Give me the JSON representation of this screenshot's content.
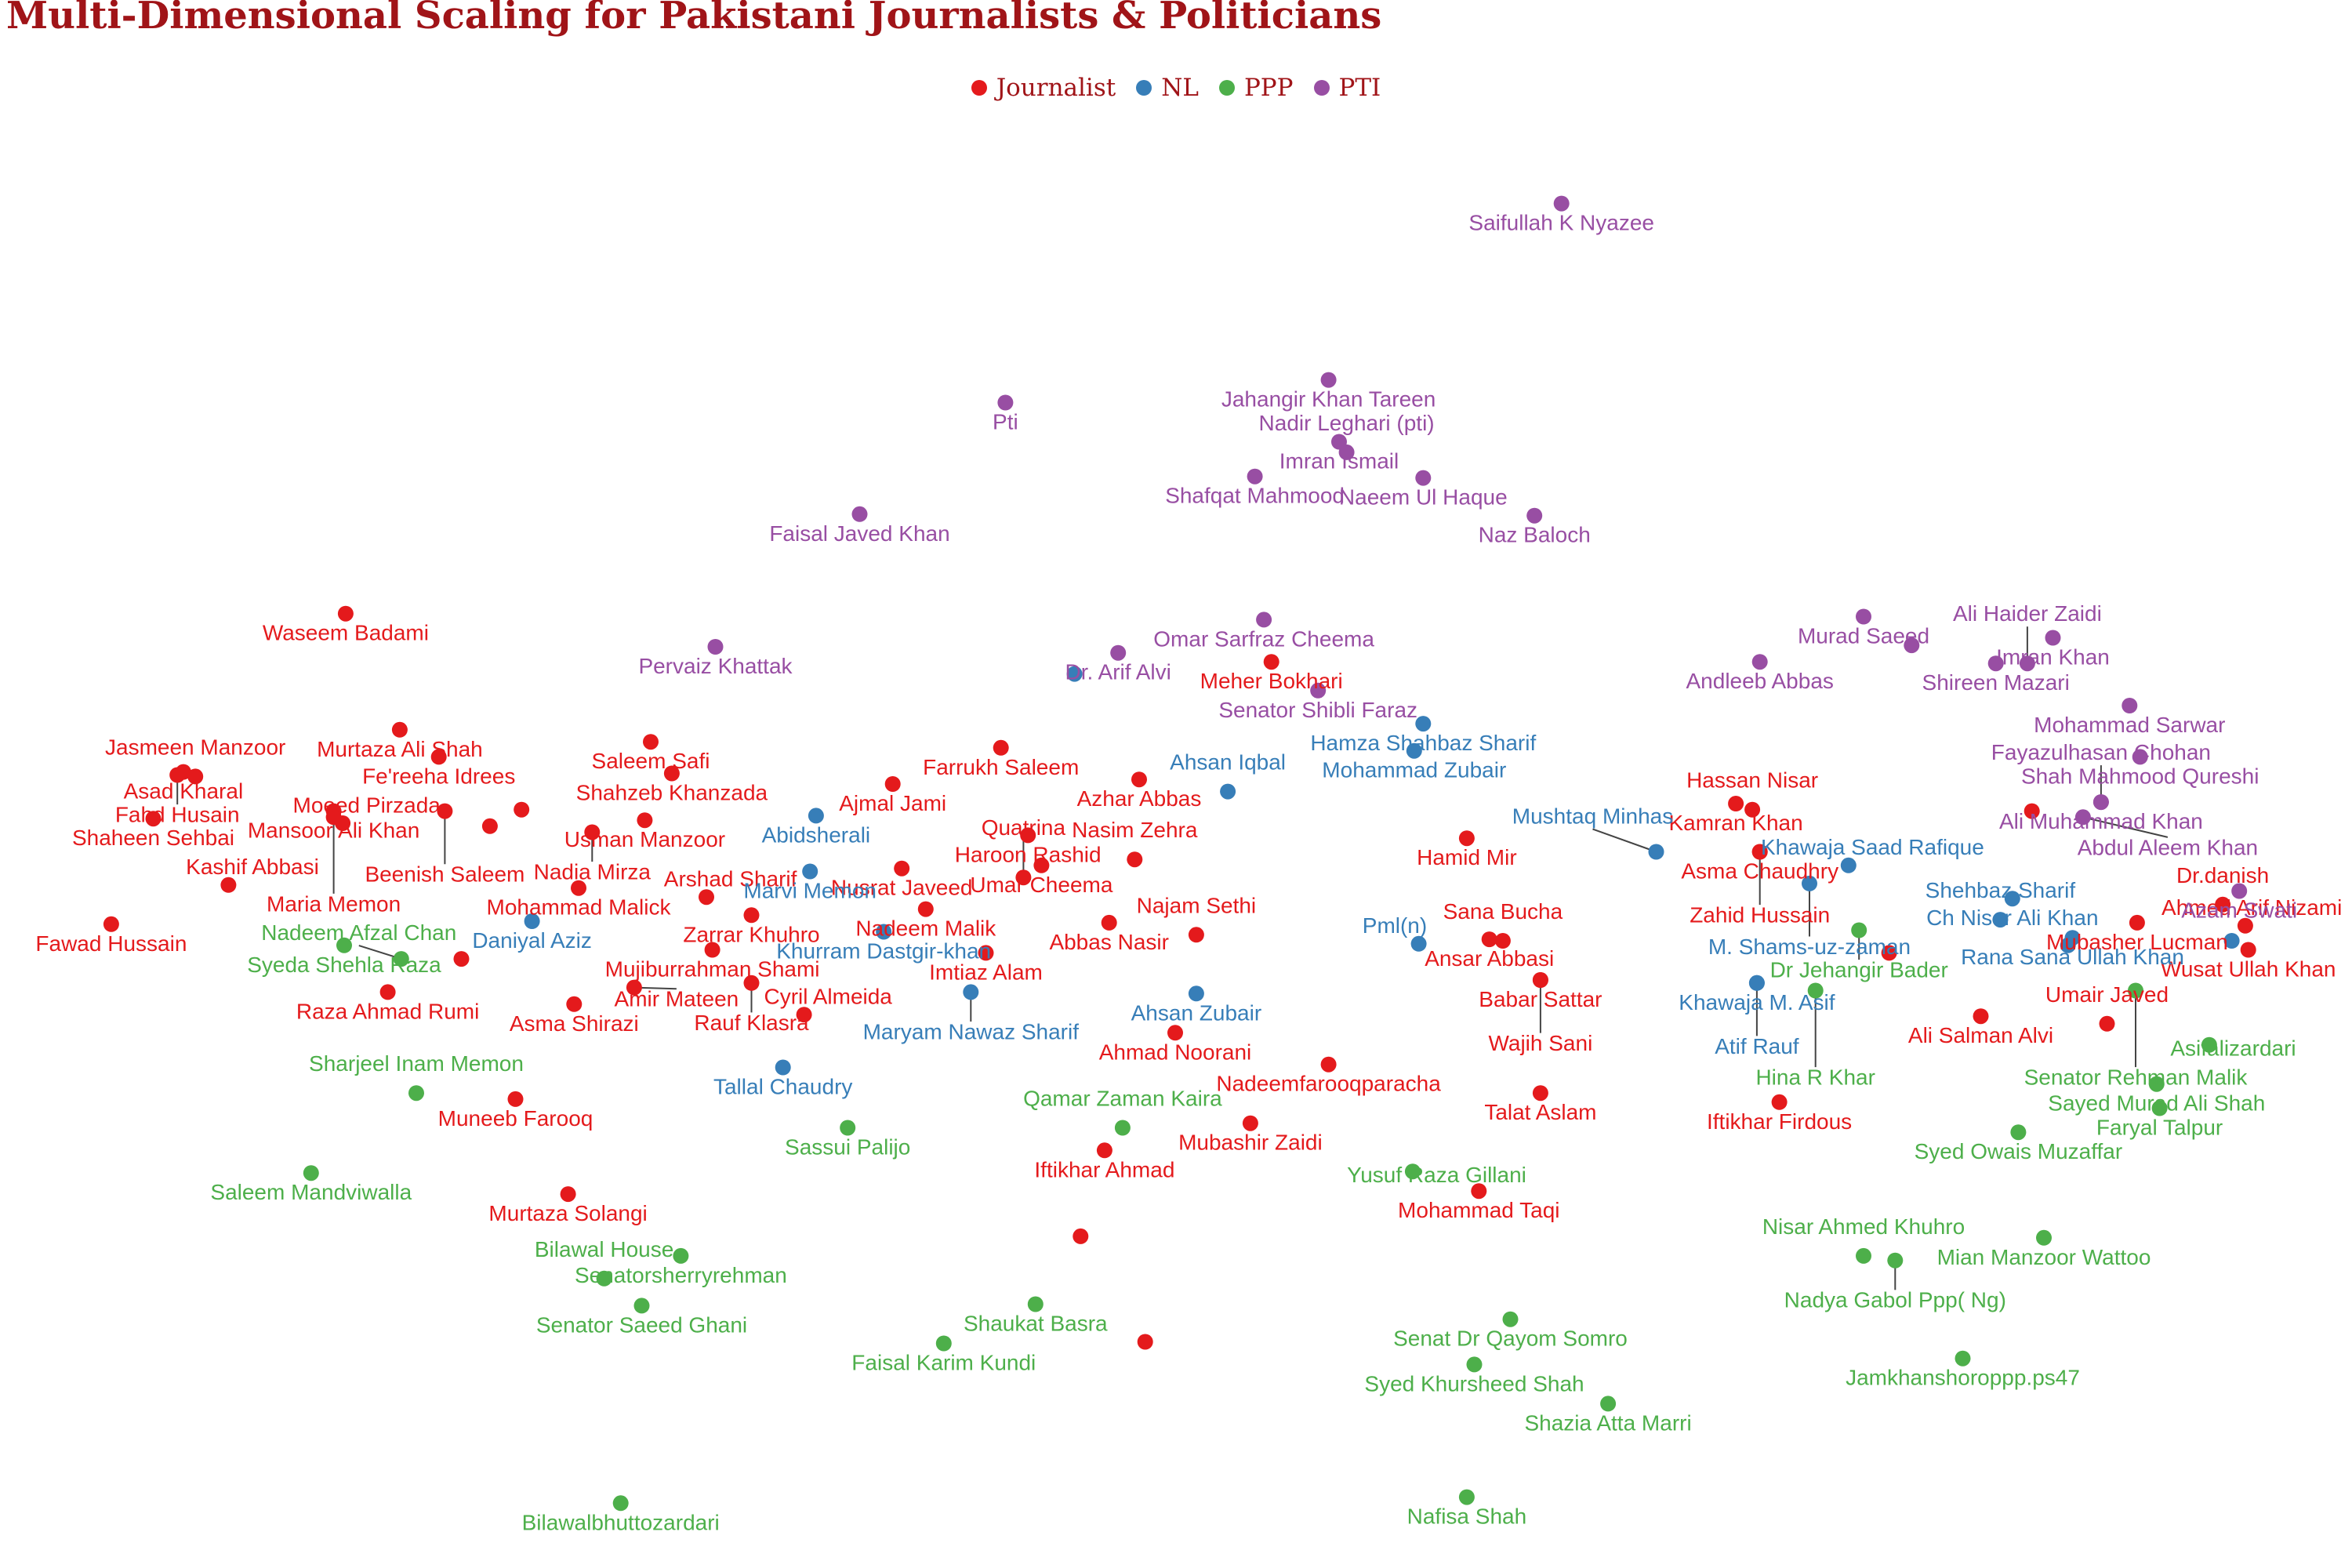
{
  "chart_data": {
    "type": "scatter",
    "title": "Multi-Dimensional Scaling for Pakistani Journalists & Politicians",
    "xlabel": "",
    "ylabel": "",
    "grid": false,
    "legend_position": "top-center",
    "x_range": [
      0,
      1565
    ],
    "y_range": [
      0,
      1040
    ],
    "y_axis_direction": "down",
    "colors": {
      "Journalist": "#e41a1c",
      "NL": "#377eb8",
      "PPP": "#4daf4a",
      "PTI": "#984ea3"
    },
    "series": [
      {
        "name": "Journalist",
        "points": [
          {
            "label": "Waseem Badami",
            "x": 230,
            "y": 407
          },
          {
            "label": "Murtaza Ali Shah",
            "x": 266,
            "y": 484
          },
          {
            "label": "Fe'reeha  Idrees",
            "x": 292,
            "y": 502
          },
          {
            "label": "Asad Kharal",
            "x": 122,
            "y": 512
          },
          {
            "label": "Mansoor Ali Khan",
            "x": 222,
            "y": 538
          },
          {
            "label": "Jasmeen Manzoor",
            "x": 130,
            "y": 515
          },
          {
            "label": "Fahd Husain",
            "x": 118,
            "y": 514
          },
          {
            "label": "Beenish Saleem",
            "x": 296,
            "y": 538
          },
          {
            "label": "Moeed Pirzada",
            "x": 228,
            "y": 546
          },
          {
            "label": "Shaheen Sehbai",
            "x": 102,
            "y": 543
          },
          {
            "label": "Maria Memon",
            "x": 222,
            "y": 542
          },
          {
            "label": "Kashif Abbasi",
            "x": 152,
            "y": 587
          },
          {
            "label": "Fawad Hussain",
            "x": 74,
            "y": 613
          },
          {
            "label": "",
            "x": 326,
            "y": 548
          },
          {
            "label": "",
            "x": 347,
            "y": 537
          },
          {
            "label": "Saleem Safi",
            "x": 433,
            "y": 492
          },
          {
            "label": "Shahzeb Khanzada",
            "x": 447,
            "y": 513
          },
          {
            "label": "Usman Manzoor",
            "x": 429,
            "y": 544
          },
          {
            "label": "Nadia Mirza",
            "x": 394,
            "y": 552
          },
          {
            "label": "Mohammad Malick",
            "x": 385,
            "y": 589
          },
          {
            "label": "Arshad Sharif",
            "x": 470,
            "y": 595
          },
          {
            "label": "Zarrar Khuhro",
            "x": 500,
            "y": 607
          },
          {
            "label": "Mujiburrahman Shami",
            "x": 474,
            "y": 630
          },
          {
            "label": "",
            "x": 307,
            "y": 636
          },
          {
            "label": "Raza Ahmad Rumi",
            "x": 258,
            "y": 658
          },
          {
            "label": "Asma Shirazi",
            "x": 382,
            "y": 666
          },
          {
            "label": "Amir Mateen",
            "x": 422,
            "y": 655
          },
          {
            "label": "Rauf Klasra",
            "x": 500,
            "y": 652
          },
          {
            "label": "Cyril Almeida",
            "x": 535,
            "y": 673
          },
          {
            "label": "Farrukh Saleem",
            "x": 666,
            "y": 496
          },
          {
            "label": "Ajmal Jami",
            "x": 594,
            "y": 520
          },
          {
            "label": "Azhar Abbas",
            "x": 758,
            "y": 517
          },
          {
            "label": "Haroon Rashid",
            "x": 684,
            "y": 554
          },
          {
            "label": "Nusrat Javeed",
            "x": 600,
            "y": 576
          },
          {
            "label": "Umar Cheema",
            "x": 693,
            "y": 574
          },
          {
            "label": "Nasim Zehra",
            "x": 755,
            "y": 570
          },
          {
            "label": "Nadeem Malik",
            "x": 616,
            "y": 603
          },
          {
            "label": "Quatrina",
            "x": 681,
            "y": 582
          },
          {
            "label": "Abbas Nasir",
            "x": 738,
            "y": 612
          },
          {
            "label": "Najam Sethi",
            "x": 796,
            "y": 620
          },
          {
            "label": "Imtiaz Alam",
            "x": 656,
            "y": 632
          },
          {
            "label": "Ahmad Noorani",
            "x": 782,
            "y": 685
          },
          {
            "label": "Meher Bokhari",
            "x": 846,
            "y": 439
          },
          {
            "label": "Hamid Mir",
            "x": 976,
            "y": 556
          },
          {
            "label": "Ansar Abbasi",
            "x": 991,
            "y": 623
          },
          {
            "label": "Sana Bucha",
            "x": 1000,
            "y": 624
          },
          {
            "label": "Babar Sattar",
            "x": 1025,
            "y": 650
          },
          {
            "label": "Wajih Sani",
            "x": 1025,
            "y": 650
          },
          {
            "label": "Kamran Khan",
            "x": 1155,
            "y": 533
          },
          {
            "label": "Hassan Nisar",
            "x": 1166,
            "y": 537
          },
          {
            "label": "Asma Chaudhry",
            "x": 1171,
            "y": 565
          },
          {
            "label": "Zahid Hussain",
            "x": 1171,
            "y": 565
          },
          {
            "label": "",
            "x": 1352,
            "y": 538
          },
          {
            "label": "Mubasher Lucman",
            "x": 1422,
            "y": 612
          },
          {
            "label": "Dr.danish",
            "x": 1479,
            "y": 600
          },
          {
            "label": "Ahmed Arif Nizami",
            "x": 1494,
            "y": 614
          },
          {
            "label": "Wusat Ullah Khan",
            "x": 1496,
            "y": 630
          },
          {
            "label": "",
            "x": 1257,
            "y": 632
          },
          {
            "label": "Ali Salman Alvi",
            "x": 1318,
            "y": 674
          },
          {
            "label": "Umair Javed",
            "x": 1402,
            "y": 679
          },
          {
            "label": "Iftikhar Firdous",
            "x": 1184,
            "y": 731
          },
          {
            "label": "Talat Aslam",
            "x": 1025,
            "y": 725
          },
          {
            "label": "Nadeemfarooqparacha",
            "x": 884,
            "y": 706
          },
          {
            "label": "Mubashir Zaidi",
            "x": 832,
            "y": 745
          },
          {
            "label": "Iftikhar Ahmad",
            "x": 735,
            "y": 763
          },
          {
            "label": "Mohammad Taqi",
            "x": 984,
            "y": 790
          },
          {
            "label": "Muneeb Farooq",
            "x": 343,
            "y": 729
          },
          {
            "label": "Murtaza Solangi",
            "x": 378,
            "y": 792
          },
          {
            "label": "",
            "x": 719,
            "y": 820
          },
          {
            "label": "",
            "x": 762,
            "y": 890
          }
        ]
      },
      {
        "name": "NL",
        "points": [
          {
            "label": "Abidsherali",
            "x": 543,
            "y": 541
          },
          {
            "label": "Marvi Memon",
            "x": 539,
            "y": 578
          },
          {
            "label": "Daniyal Aziz",
            "x": 354,
            "y": 611
          },
          {
            "label": "Khurram Dastgir-khan",
            "x": 588,
            "y": 618
          },
          {
            "label": "Maryam Nawaz Sharif",
            "x": 646,
            "y": 658
          },
          {
            "label": "Tallal Chaudry",
            "x": 521,
            "y": 708
          },
          {
            "label": "",
            "x": 715,
            "y": 447
          },
          {
            "label": "Ahsan Iqbal",
            "x": 817,
            "y": 525
          },
          {
            "label": "Ahsan Zubair",
            "x": 796,
            "y": 659
          },
          {
            "label": "Hamza Shahbaz Sharif",
            "x": 947,
            "y": 480
          },
          {
            "label": "Mohammad Zubair",
            "x": 941,
            "y": 498
          },
          {
            "label": "Pml(n)",
            "x": 944,
            "y": 626
          },
          {
            "label": "Mushtaq Minhas",
            "x": 1102,
            "y": 565
          },
          {
            "label": "Khawaja Saad Rafique",
            "x": 1230,
            "y": 574
          },
          {
            "label": "M. Shams-uz-zaman",
            "x": 1204,
            "y": 586
          },
          {
            "label": "Ch Nisar Ali Khan",
            "x": 1339,
            "y": 596
          },
          {
            "label": "Shehbaz Sharif",
            "x": 1331,
            "y": 610
          },
          {
            "label": "Rana Sana Ullah Khan",
            "x": 1379,
            "y": 622
          },
          {
            "label": "",
            "x": 1376,
            "y": 627
          },
          {
            "label": "Khawaja M. Asif",
            "x": 1169,
            "y": 652
          },
          {
            "label": "Atif Rauf",
            "x": 1169,
            "y": 652
          },
          {
            "label": "",
            "x": 1485,
            "y": 624
          }
        ]
      },
      {
        "name": "PPP",
        "points": [
          {
            "label": "Syeda Shehla Raza",
            "x": 229,
            "y": 627
          },
          {
            "label": "Nadeem Afzal Chan",
            "x": 267,
            "y": 636
          },
          {
            "label": "Sharjeel Inam Memon",
            "x": 277,
            "y": 725
          },
          {
            "label": "Saleem Mandviwalla",
            "x": 207,
            "y": 778
          },
          {
            "label": "Senatorsherryrehman",
            "x": 453,
            "y": 833
          },
          {
            "label": "Bilawal House",
            "x": 402,
            "y": 848
          },
          {
            "label": "Senator Saeed Ghani",
            "x": 427,
            "y": 866
          },
          {
            "label": "Bilawalbhuttozardari",
            "x": 413,
            "y": 997
          },
          {
            "label": "Sassui Palijo",
            "x": 564,
            "y": 748
          },
          {
            "label": "Qamar Zaman Kaira",
            "x": 747,
            "y": 748
          },
          {
            "label": "Shaukat Basra",
            "x": 689,
            "y": 865
          },
          {
            "label": "Faisal Karim Kundi",
            "x": 628,
            "y": 891
          },
          {
            "label": "Yusuf Raza Gillani",
            "x": 940,
            "y": 777
          },
          {
            "label": "Senat Dr Qayom Somro",
            "x": 1005,
            "y": 875
          },
          {
            "label": "Syed Khursheed Shah",
            "x": 981,
            "y": 905
          },
          {
            "label": "Shazia Atta Marri",
            "x": 1070,
            "y": 931
          },
          {
            "label": "Nafisa Shah",
            "x": 976,
            "y": 993
          },
          {
            "label": "Dr Jehangir Bader",
            "x": 1237,
            "y": 617
          },
          {
            "label": "Hina R Khar",
            "x": 1208,
            "y": 657
          },
          {
            "label": "Senator Rehman Malik",
            "x": 1421,
            "y": 657
          },
          {
            "label": "Asifalizardari",
            "x": 1470,
            "y": 693
          },
          {
            "label": "Sayed Murad Ali Shah",
            "x": 1435,
            "y": 719
          },
          {
            "label": "Faryal Talpur",
            "x": 1437,
            "y": 735
          },
          {
            "label": "Syed Owais Muzaffar",
            "x": 1343,
            "y": 751
          },
          {
            "label": "Mian Manzoor Wattoo",
            "x": 1360,
            "y": 821
          },
          {
            "label": "Nisar Ahmed Khuhro",
            "x": 1240,
            "y": 833
          },
          {
            "label": "Nadya Gabol Ppp( Ng)",
            "x": 1261,
            "y": 836
          },
          {
            "label": "Jamkhanshoroppp.ps47",
            "x": 1306,
            "y": 901
          }
        ]
      },
      {
        "name": "PTI",
        "points": [
          {
            "label": "Saifullah K Nyazee",
            "x": 1039,
            "y": 135
          },
          {
            "label": "Jahangir Khan Tareen",
            "x": 884,
            "y": 252
          },
          {
            "label": "Pti",
            "x": 669,
            "y": 267
          },
          {
            "label": "Imran Ismail",
            "x": 891,
            "y": 293
          },
          {
            "label": "Nadir Leghari (pti)",
            "x": 896,
            "y": 300
          },
          {
            "label": "Shafqat Mahmood",
            "x": 835,
            "y": 316
          },
          {
            "label": "Naeem Ul Haque",
            "x": 947,
            "y": 317
          },
          {
            "label": "Naz Baloch",
            "x": 1021,
            "y": 342
          },
          {
            "label": "Faisal Javed Khan",
            "x": 572,
            "y": 341
          },
          {
            "label": "Omar Sarfraz Cheema",
            "x": 841,
            "y": 411
          },
          {
            "label": "Pervaiz Khattak",
            "x": 476,
            "y": 429
          },
          {
            "label": "Dr. Arif Alvi",
            "x": 744,
            "y": 433
          },
          {
            "label": "Senator Shibli Faraz",
            "x": 877,
            "y": 458
          },
          {
            "label": "Murad Saeed",
            "x": 1240,
            "y": 409
          },
          {
            "label": "",
            "x": 1272,
            "y": 428
          },
          {
            "label": "Imran Khan",
            "x": 1366,
            "y": 423
          },
          {
            "label": "Andleeb Abbas",
            "x": 1171,
            "y": 439
          },
          {
            "label": "Shireen Mazari",
            "x": 1328,
            "y": 440
          },
          {
            "label": "Ali Haider Zaidi",
            "x": 1349,
            "y": 440
          },
          {
            "label": "Mohammad Sarwar",
            "x": 1417,
            "y": 468
          },
          {
            "label": "Shah Mahmood Qureshi",
            "x": 1424,
            "y": 502
          },
          {
            "label": "Ali Muhammad Khan",
            "x": 1398,
            "y": 532
          },
          {
            "label": "Fayazulhasan Chohan",
            "x": 1398,
            "y": 532
          },
          {
            "label": "Abdul Aleem Khan",
            "x": 1386,
            "y": 542
          },
          {
            "label": "Azam Swati",
            "x": 1490,
            "y": 591
          }
        ]
      }
    ]
  }
}
